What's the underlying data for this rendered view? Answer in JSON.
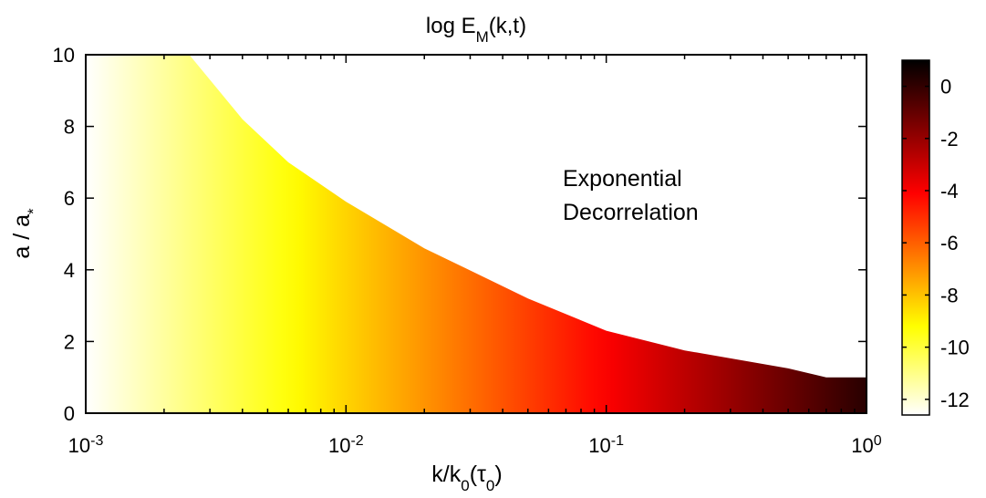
{
  "chart_data": {
    "type": "heatmap",
    "title_main": "log E",
    "title_sub": "M",
    "title_rest": "(k,t)",
    "xlabel_main": "k/k",
    "xlabel_sub": "0",
    "xlabel_paren_open": "(",
    "xlabel_tau": "τ",
    "xlabel_tau_sub": "0",
    "xlabel_paren_close": ")",
    "ylabel_main": "a / a",
    "ylabel_sub": "*",
    "x_scale": "log",
    "x_range": [
      0.001,
      1
    ],
    "y_range": [
      0,
      10
    ],
    "x_ticks": [
      {
        "value": 0.001,
        "base": "10",
        "exp": "-3"
      },
      {
        "value": 0.01,
        "base": "10",
        "exp": "-2"
      },
      {
        "value": 0.1,
        "base": "10",
        "exp": "-1"
      },
      {
        "value": 1,
        "base": "10",
        "exp": "0"
      }
    ],
    "y_ticks": [
      {
        "value": 0,
        "label": "0"
      },
      {
        "value": 2,
        "label": "2"
      },
      {
        "value": 4,
        "label": "4"
      },
      {
        "value": 6,
        "label": "6"
      },
      {
        "value": 8,
        "label": "8"
      },
      {
        "value": 10,
        "label": "10"
      }
    ],
    "colorbar": {
      "colormap": "hot",
      "range": [
        -12.6,
        1
      ],
      "ticks": [
        {
          "value": 0,
          "label": "0"
        },
        {
          "value": -2,
          "label": "-2"
        },
        {
          "value": -4,
          "label": "-4"
        },
        {
          "value": -6,
          "label": "-6"
        },
        {
          "value": -8,
          "label": "-8"
        },
        {
          "value": -10,
          "label": "-10"
        },
        {
          "value": -12,
          "label": "-12"
        }
      ]
    },
    "field": {
      "value_at_k_min": -12.6,
      "value_at_k_max": 0.2,
      "boundary": {
        "k": [
          0.0025,
          0.004,
          0.006,
          0.01,
          0.02,
          0.05,
          0.1,
          0.2,
          0.5,
          0.7,
          1.0
        ],
        "a": [
          10,
          8.2,
          7.0,
          5.9,
          4.6,
          3.2,
          2.3,
          1.75,
          1.25,
          1.0,
          1.0
        ]
      }
    },
    "annotation": [
      "Exponential",
      "Decorrelation"
    ],
    "grid": false,
    "legend": "none"
  }
}
